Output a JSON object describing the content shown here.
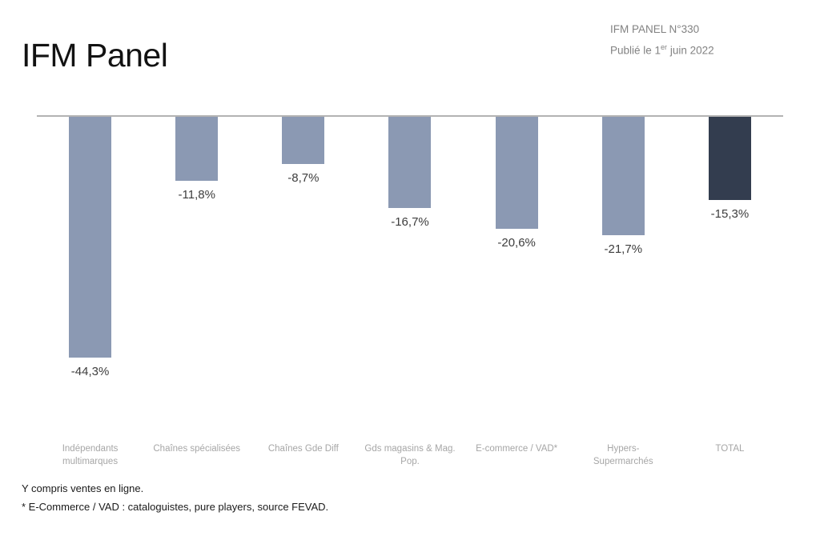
{
  "page": {
    "title": "IFM Panel"
  },
  "header": {
    "panel_ref": "IFM PANEL N°330",
    "published_prefix": "Publié le 1",
    "published_sup": "er",
    "published_suffix": " juin 2022"
  },
  "chart_data": {
    "type": "bar",
    "title": "IFM Panel",
    "orientation": "vertical",
    "axis_visible": false,
    "grid": false,
    "legend": "none",
    "unit": "%",
    "ylim": [
      -50,
      0
    ],
    "categories": [
      "Indépendants multimarques",
      "Chaînes spécialisées",
      "Chaînes Gde Diff",
      "Gds magasins & Mag. Pop.",
      "E-commerce / VAD*",
      "Hypers-Supermarchés",
      "TOTAL"
    ],
    "values": [
      -44.3,
      -11.8,
      -8.7,
      -16.7,
      -20.6,
      -21.7,
      -15.3
    ],
    "labels": [
      "-44,3%",
      "-11,8%",
      "-8,7%",
      "-16,7%",
      "-20,6%",
      "-21,7%",
      "-15,3%"
    ],
    "bar_color": "#8b99b3",
    "total_bar_color": "#333d4f",
    "total_category": "TOTAL",
    "baseline_color": "#b3b3b3"
  },
  "footnotes": [
    "Y compris ventes en ligne.",
    "* E-Commerce / VAD : cataloguistes, pure players, source FEVAD."
  ]
}
